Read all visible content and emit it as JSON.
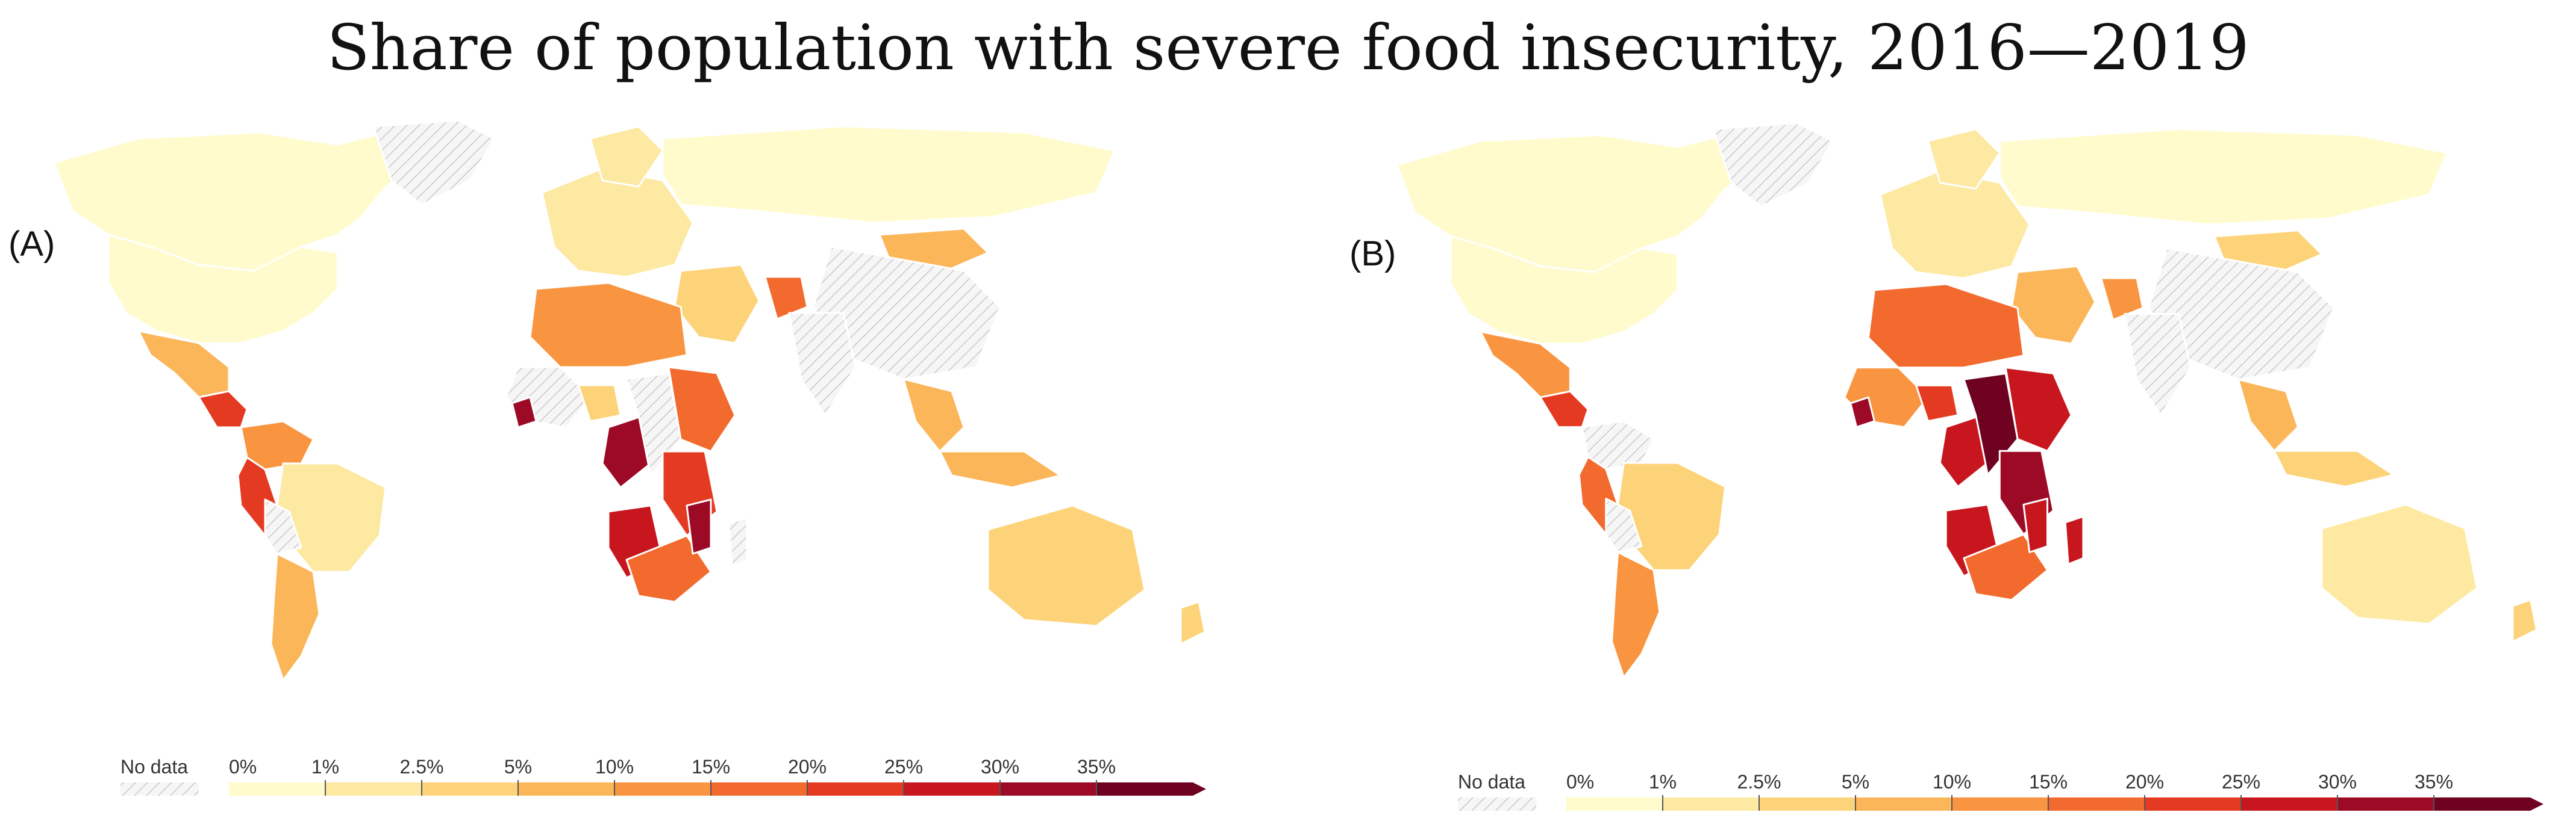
{
  "title": "Share of population with severe food insecurity, 2016—2019",
  "panels": [
    {
      "label": "(A)"
    },
    {
      "label": "(B)"
    }
  ],
  "legend": {
    "no_data": "No data",
    "ticks": [
      "0%",
      "1%",
      "2.5%",
      "5%",
      "10%",
      "15%",
      "20%",
      "25%",
      "30%",
      "35%"
    ],
    "colors": [
      "#fffbcc",
      "#fde9a1",
      "#fdd37a",
      "#fcb65a",
      "#f99540",
      "#f26a2e",
      "#e53a22",
      "#c8161e",
      "#9c0a26",
      "#6e0220"
    ]
  },
  "palette": {
    "land_low": "#fffbcc",
    "c1": "#fde9a1",
    "c2": "#fdd37a",
    "c3": "#fcb65a",
    "c4": "#f99540",
    "c5": "#f26a2e",
    "c6": "#e53a22",
    "c7": "#c8161e",
    "c8": "#9c0a26",
    "c9": "#6e0220",
    "no_data": "#f3f3f3"
  }
}
